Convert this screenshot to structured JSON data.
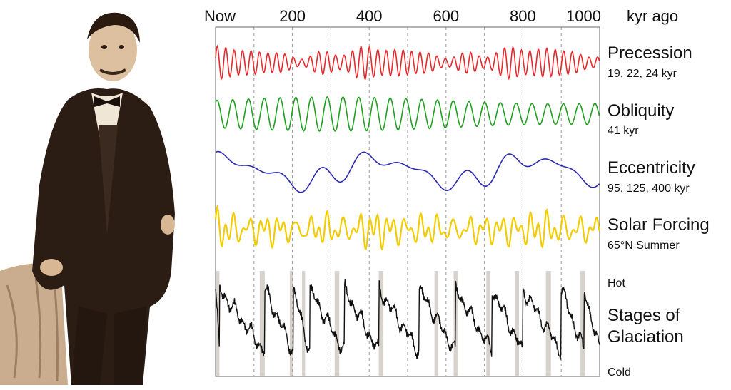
{
  "chart_data": {
    "type": "line",
    "title": "",
    "x_axis": {
      "position": "top",
      "range": [
        0,
        1000
      ],
      "unit": "kyr ago",
      "ticks": [
        {
          "value": 0,
          "label": "Now"
        },
        {
          "value": 200,
          "label": "200"
        },
        {
          "value": 400,
          "label": "400"
        },
        {
          "value": 600,
          "label": "600"
        },
        {
          "value": 800,
          "label": "800"
        },
        {
          "value": 1000,
          "label": "1000"
        }
      ]
    },
    "grid": "dashed vertical lines every 100 kyr",
    "series": [
      {
        "key": "precession",
        "name": "Precession",
        "subtitle": "19, 22, 24 kyr",
        "color": "#e8282b",
        "periods_kyr": [
          19,
          22,
          24
        ]
      },
      {
        "key": "obliquity",
        "name": "Obliquity",
        "subtitle": "41 kyr",
        "color": "#1fa01f",
        "periods_kyr": [
          41
        ]
      },
      {
        "key": "eccentricity",
        "name": "Eccentricity",
        "subtitle": "95, 125, 400 kyr",
        "color": "#2a2ab0",
        "periods_kyr": [
          95,
          125,
          400
        ]
      },
      {
        "key": "solar",
        "name": "Solar Forcing",
        "subtitle": "65°N Summer",
        "color": "#f2cc00",
        "periods_kyr": []
      },
      {
        "key": "glaciation",
        "name": "Stages of Glaciation",
        "color": "#111111",
        "top_label": "Hot",
        "bottom_label": "Cold",
        "shaded_bands_kyr": [
          [
            2,
            10
          ],
          [
            115,
            128
          ],
          [
            193,
            202
          ],
          [
            225,
            233
          ],
          [
            310,
            322
          ],
          [
            425,
            437
          ],
          [
            570,
            578
          ],
          [
            620,
            632
          ],
          [
            705,
            715
          ],
          [
            780,
            790
          ],
          [
            860,
            873
          ],
          [
            950,
            962
          ]
        ],
        "terminations_kyr": [
          10,
          128,
          202,
          245,
          335,
          425,
          530,
          625,
          720,
          800,
          900,
          960
        ]
      }
    ]
  },
  "photo": {
    "description_icon": "portrait-icon"
  }
}
